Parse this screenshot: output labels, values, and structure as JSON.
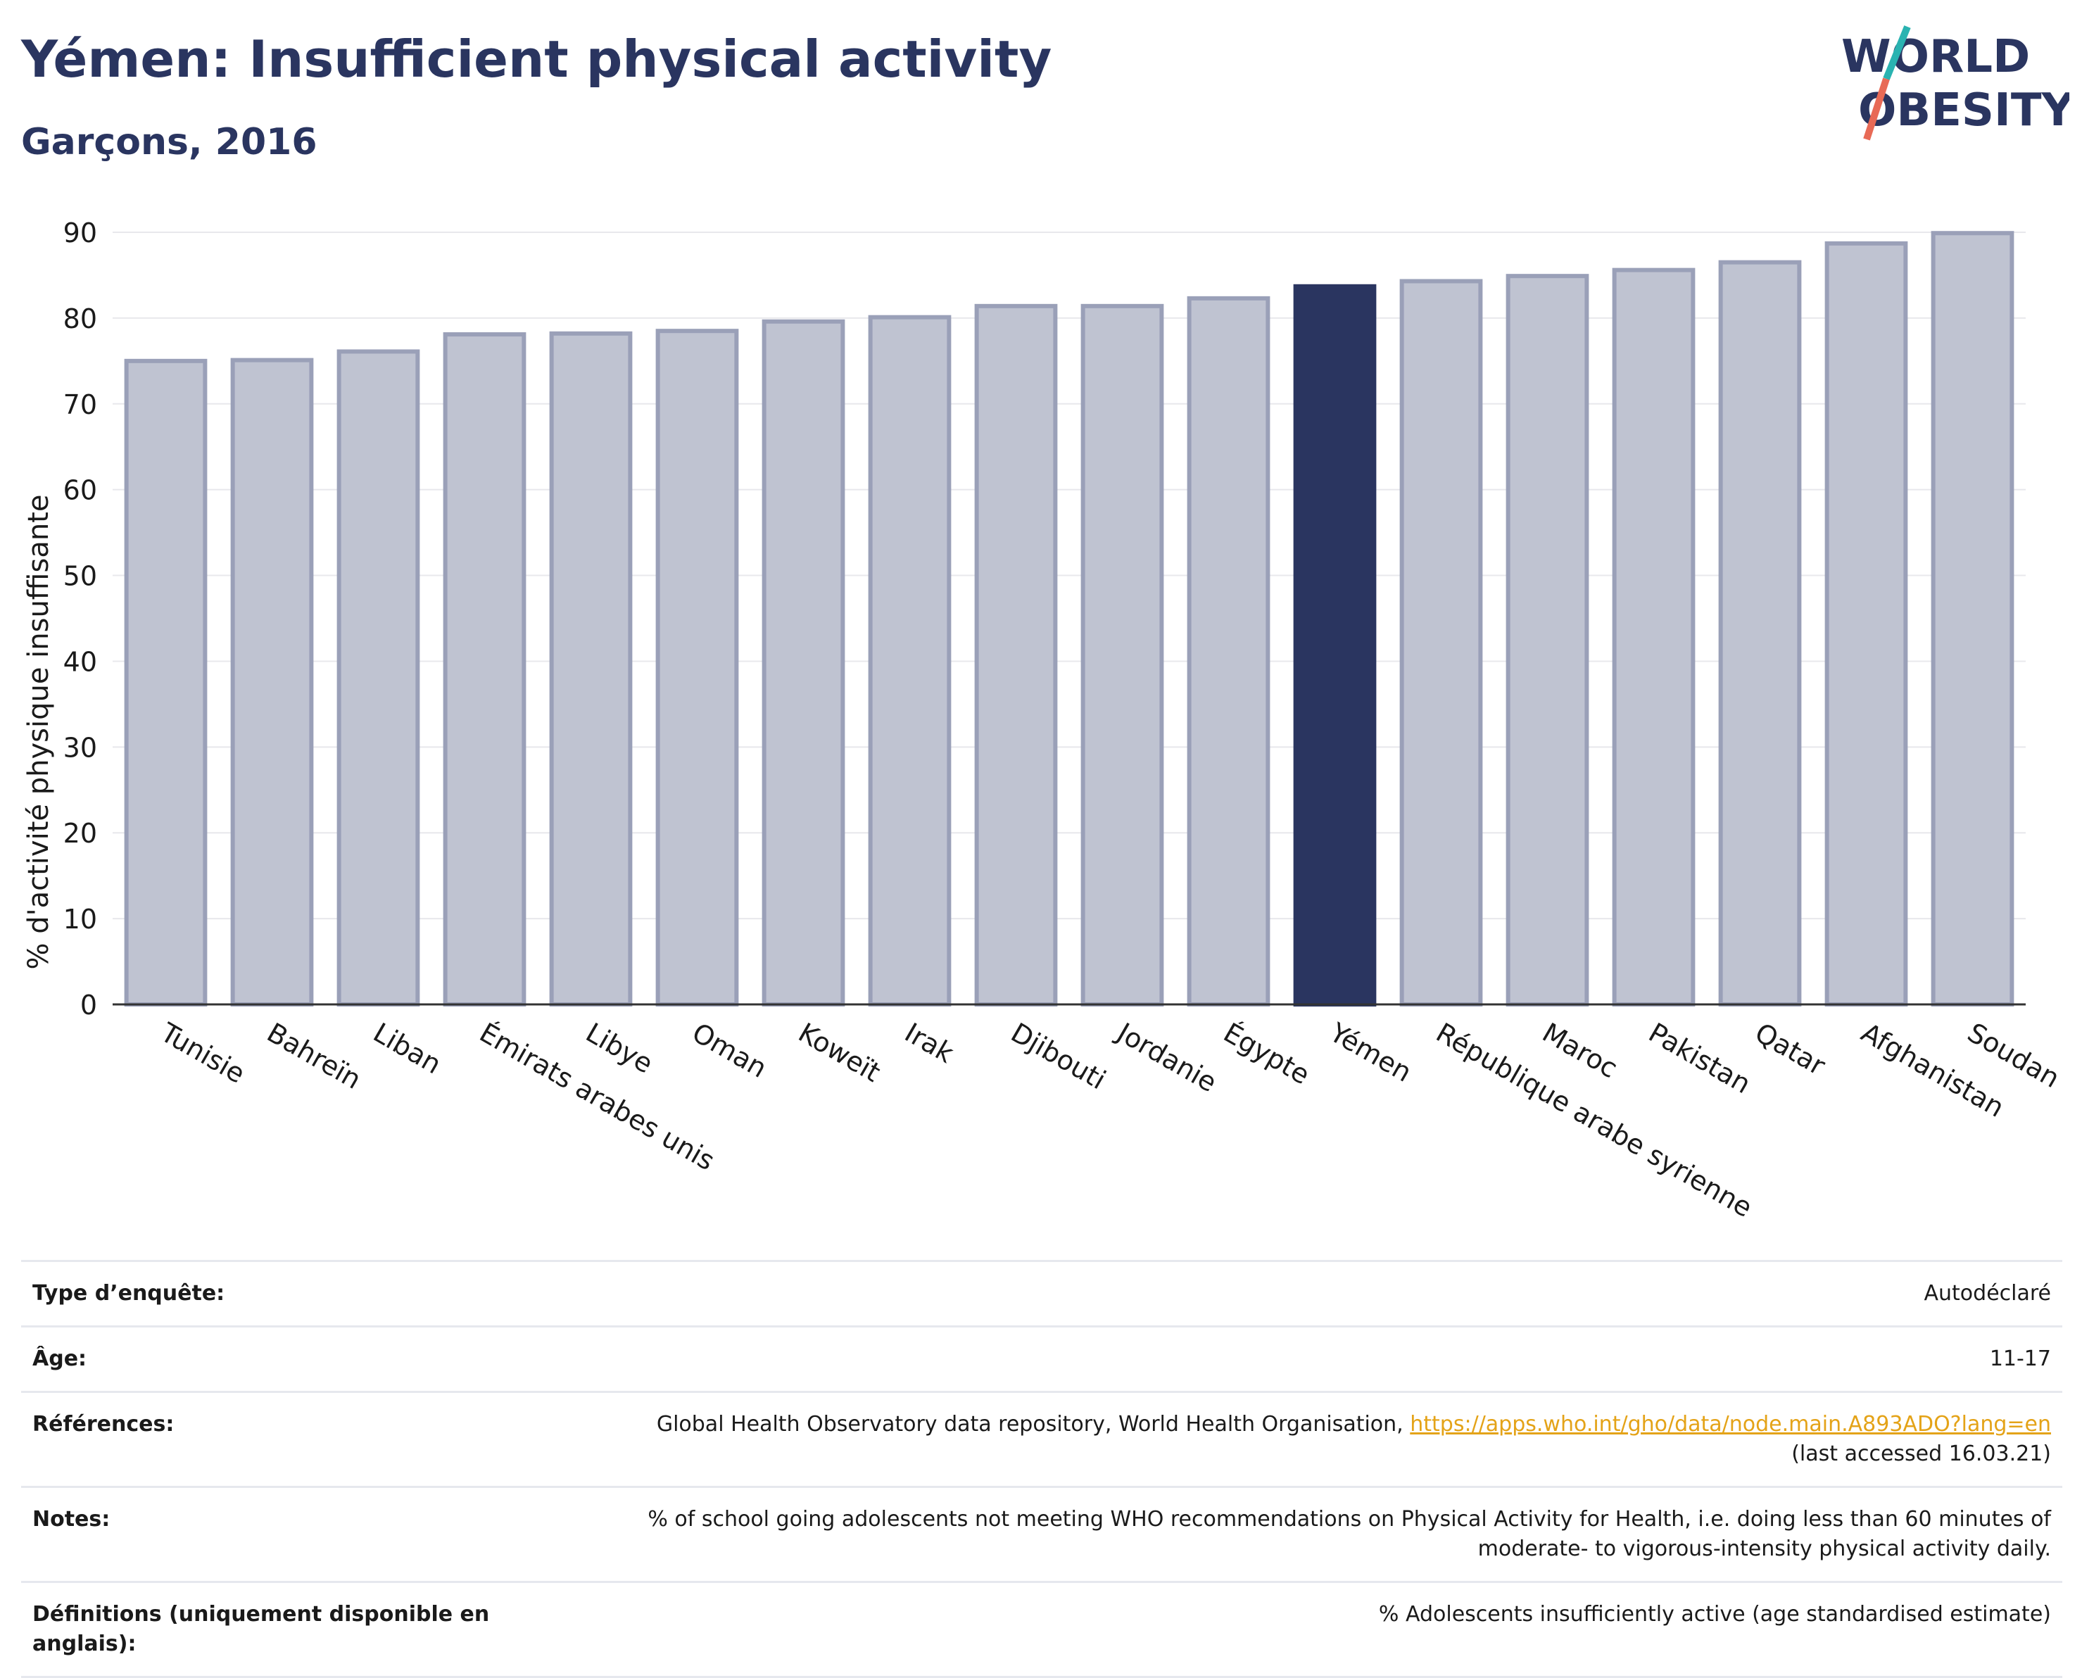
{
  "header": {
    "title": "Yémen: Insufficient physical activity",
    "subtitle": "Garçons, 2016",
    "logo_line1": "WORLD",
    "logo_line2": "OBESITY"
  },
  "colors": {
    "highlight": "#2a3560",
    "bar": "#bfc3d1",
    "bar_border": "#9aa0b8",
    "link": "#e4a318",
    "logo_teal": "#2ab3b1",
    "logo_coral": "#e86a56"
  },
  "chart_data": {
    "type": "bar",
    "title": "",
    "xlabel": "",
    "ylabel": "% d'activité physique insuffisante",
    "ylim": [
      0,
      90
    ],
    "yticks": [
      0,
      10,
      20,
      30,
      40,
      50,
      60,
      70,
      80,
      90
    ],
    "grid": true,
    "highlight": "Yémen",
    "categories": [
      "Tunisie",
      "Bahreïn",
      "Liban",
      "Émirats arabes unis",
      "Libye",
      "Oman",
      "Koweït",
      "Irak",
      "Djibouti",
      "Jordanie",
      "Égypte",
      "Yémen",
      "République arabe syrienne",
      "Maroc",
      "Pakistan",
      "Qatar",
      "Afghanistan",
      "Soudan"
    ],
    "values": [
      75.0,
      75.1,
      76.1,
      78.1,
      78.2,
      78.5,
      79.6,
      80.1,
      81.4,
      81.4,
      82.3,
      83.7,
      84.3,
      84.9,
      85.6,
      86.5,
      88.7,
      89.9
    ]
  },
  "meta": [
    {
      "label": "Type d’enquête:",
      "value": "Autodéclaré"
    },
    {
      "label": "Âge:",
      "value": "11-17"
    },
    {
      "label": "Références:",
      "value": "Global Health Observatory data repository, World Health Organisation,",
      "link": "https://apps.who.int/gho/data/node.main.A893ADO?lang=en",
      "value2": "(last accessed 16.03.21)"
    },
    {
      "label": "Notes:",
      "value": "% of school going adolescents not meeting WHO recommendations on Physical Activity for Health, i.e. doing less than 60 minutes of moderate- to vigorous-intensity physical activity daily."
    },
    {
      "label": "Définitions (uniquement disponible en anglais):",
      "value": "% Adolescents insufficiently active (age standardised estimate)"
    }
  ]
}
